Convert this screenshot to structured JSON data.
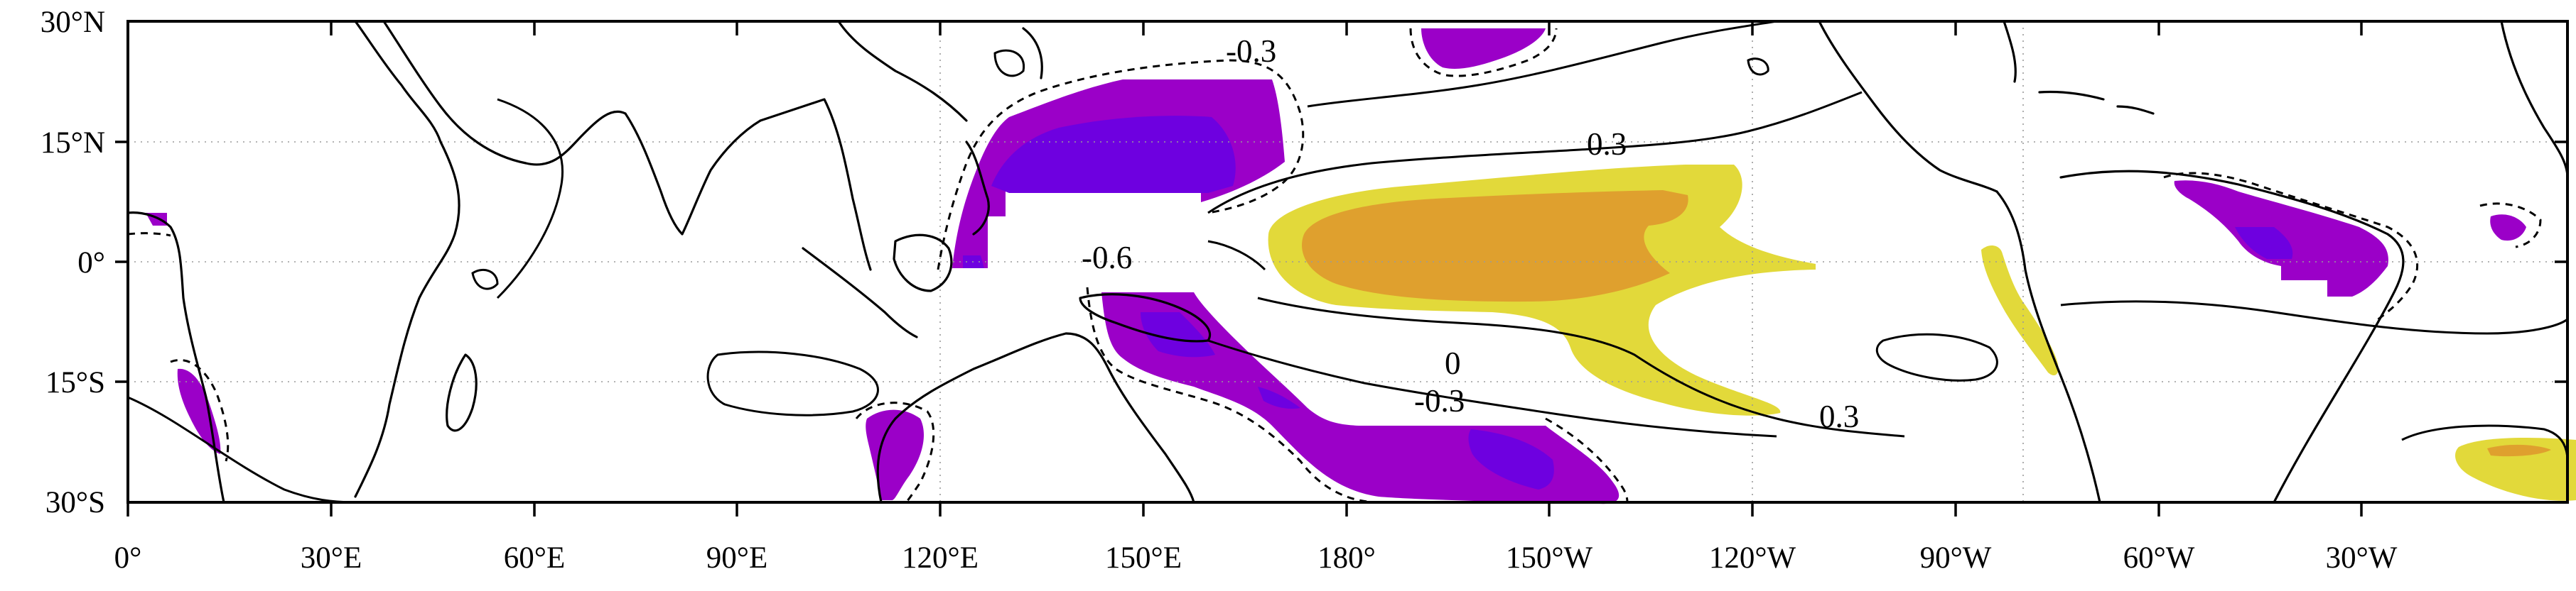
{
  "map": {
    "x_tick_labels": [
      "0°",
      "30°E",
      "60°E",
      "90°E",
      "120°E",
      "150°E",
      "180°",
      "150°W",
      "120°W",
      "90°W",
      "60°W",
      "30°W"
    ],
    "y_tick_labels": [
      "30°N",
      "15°N",
      "0°",
      "15°S",
      "30°S"
    ],
    "contour_labels": {
      "neg_03_north": "-0.3",
      "pos_03_north": "0.3",
      "neg_06": "-0.6",
      "zero": "0",
      "neg_03_south": "-0.3",
      "pos_03_south": "0.3"
    },
    "colors": {
      "yellow": "#e2d93a",
      "orange": "#dfa02e",
      "purple": "#9b00c8",
      "violet": "#6e00e0",
      "background": "#ffffff",
      "line": "#000000"
    }
  }
}
